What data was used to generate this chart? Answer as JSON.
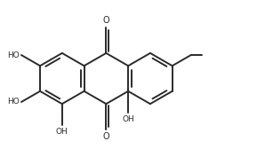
{
  "bg_color": "#ffffff",
  "line_color": "#2a2a2a",
  "font_size": 6.5,
  "lw": 1.4,
  "figsize": [
    2.98,
    1.77
  ],
  "dpi": 100,
  "xlim": [
    -0.5,
    9.5
  ],
  "ylim": [
    -2.8,
    2.8
  ]
}
